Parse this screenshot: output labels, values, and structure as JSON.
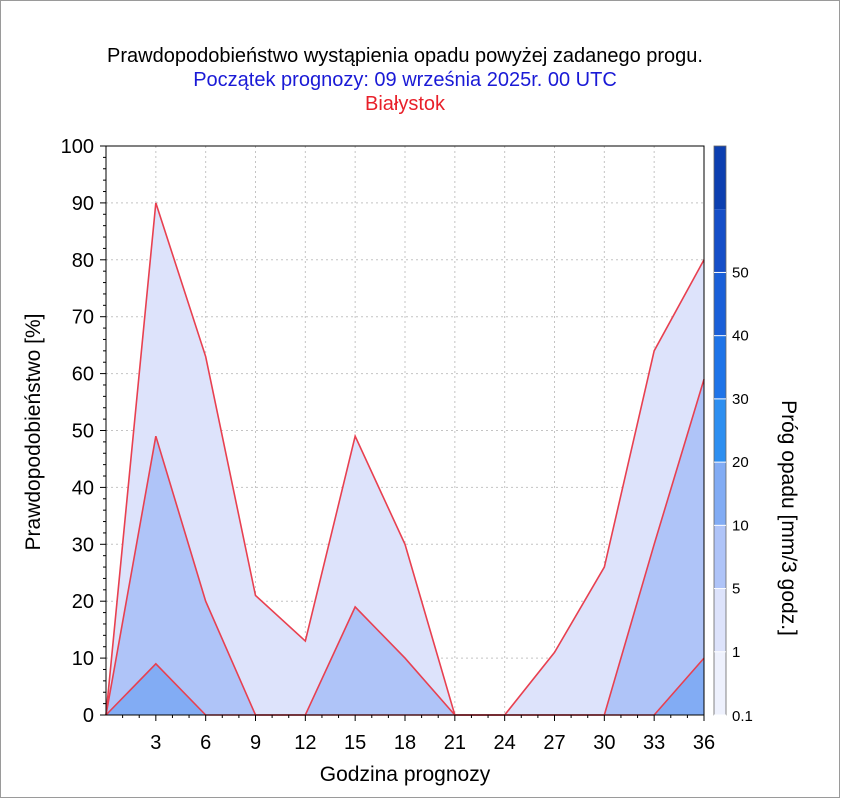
{
  "header": {
    "title": "Prawdopodobieństwo wystąpienia opadu powyżej zadanego progu.",
    "subtitle": "Początek prognozy: 09 września 2025r. 00 UTC",
    "station": "Białystok"
  },
  "chart_data": {
    "type": "area",
    "title": "Prawdopodobieństwo wystąpienia opadu powyżej zadanego progu.",
    "subtitle": "Początek prognozy: 09 września 2025r. 00 UTC",
    "station": "Białystok",
    "xlabel": "Godzina prognozy",
    "ylabel": "Prawdopodobieństwo [%]",
    "colorbar_label": "Próg opadu [mm/3 godz.]",
    "xlim": [
      0,
      36
    ],
    "ylim": [
      0,
      100
    ],
    "x_ticks": [
      "3",
      "6",
      "9",
      "12",
      "15",
      "18",
      "21",
      "24",
      "27",
      "30",
      "33",
      "36"
    ],
    "y_ticks": [
      "0",
      "10",
      "20",
      "30",
      "40",
      "50",
      "60",
      "70",
      "80",
      "90",
      "100"
    ],
    "colorbar_ticks": [
      "0.1",
      "1",
      "5",
      "10",
      "20",
      "30",
      "40",
      "50"
    ],
    "grid": true,
    "x": [
      0,
      3,
      6,
      9,
      12,
      15,
      18,
      21,
      24,
      27,
      30,
      33,
      36
    ],
    "series": [
      {
        "threshold": "0.1",
        "color": "#dde3fb",
        "values": [
          0,
          90,
          63,
          21,
          13,
          49,
          30,
          0,
          0,
          11,
          26,
          64,
          80
        ]
      },
      {
        "threshold": "1",
        "color": "#afc4f8",
        "values": [
          0,
          49,
          20,
          0,
          0,
          19,
          10,
          0,
          0,
          0,
          0,
          30,
          59
        ]
      },
      {
        "threshold": "5",
        "color": "#82acf4",
        "values": [
          0,
          9,
          0,
          0,
          0,
          0,
          0,
          0,
          0,
          0,
          0,
          0,
          10
        ]
      }
    ],
    "line_color": "#e84050",
    "colorbar_colors": [
      "#eef1fd",
      "#dde3fb",
      "#afc4f8",
      "#82acf4",
      "#2d8ff0",
      "#1f74e8",
      "#1a5fd8",
      "#154ec8",
      "#0c3fb0"
    ]
  }
}
